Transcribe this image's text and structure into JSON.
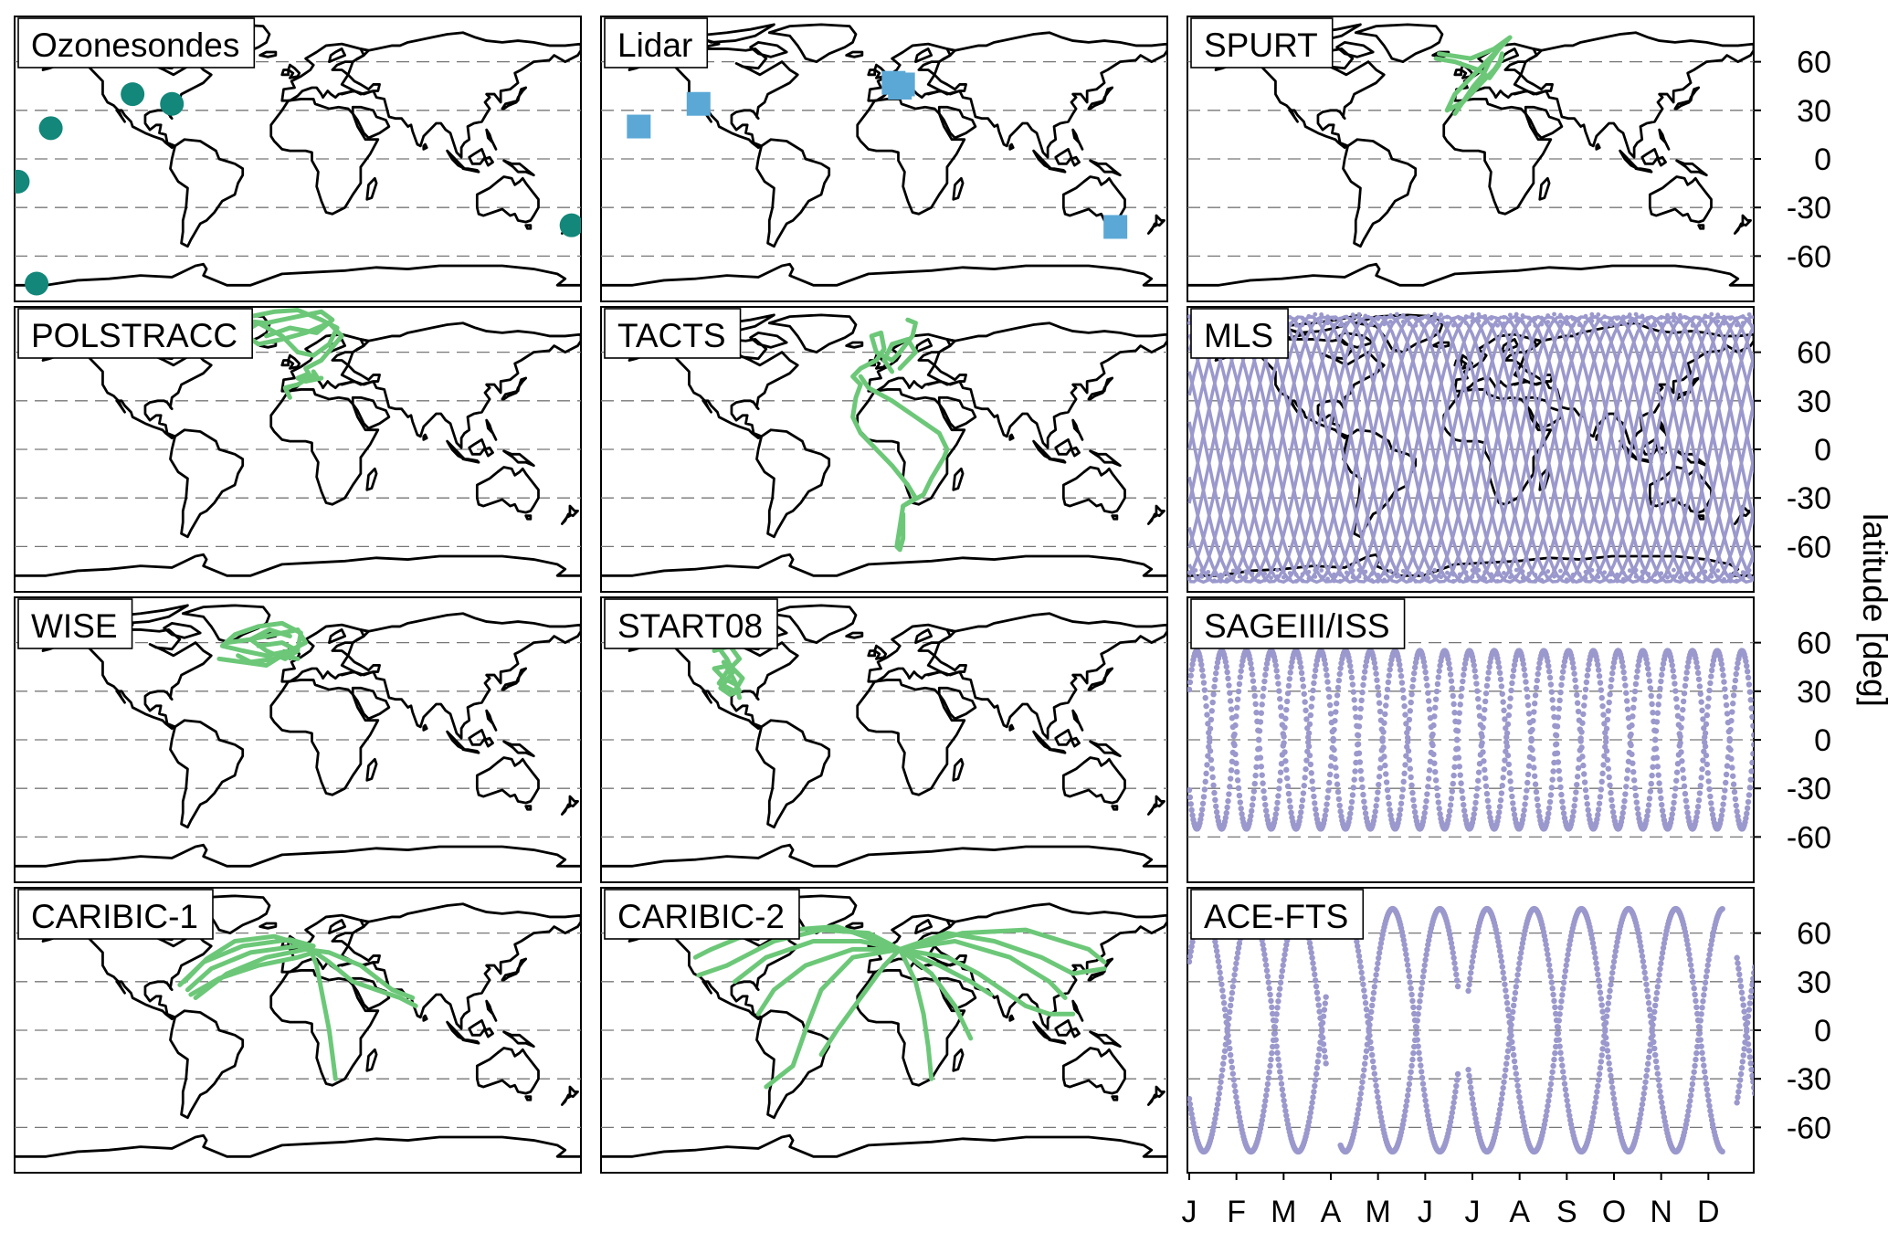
{
  "colors": {
    "ozonesondes": "#12877a",
    "lidar": "#5ba8d6",
    "aircraft": "#6cc878",
    "satellite": "#9a98cc",
    "grid": "#777777"
  },
  "y_axis": {
    "label": "latitude [deg]",
    "ticks": [
      60,
      30,
      0,
      -30,
      -60
    ]
  },
  "month_axis": {
    "labels": [
      "J",
      "F",
      "M",
      "A",
      "M",
      "J",
      "J",
      "A",
      "S",
      "O",
      "N",
      "D"
    ]
  },
  "panels": [
    {
      "id": "ozonesondes",
      "title": "Ozonesondes",
      "kind": "stations",
      "marker": "circle",
      "color_key": "ozonesondes",
      "points": [
        [
          -178,
          -14
        ],
        [
          -157,
          19
        ],
        [
          -147,
          64
        ],
        [
          -105,
          40
        ],
        [
          -80,
          34
        ],
        [
          174,
          -41
        ],
        [
          -166,
          -77
        ]
      ]
    },
    {
      "id": "lidar",
      "title": "Lidar",
      "kind": "stations",
      "marker": "square",
      "color_key": "lidar",
      "points": [
        [
          -156,
          20
        ],
        [
          -118,
          34
        ],
        [
          10,
          44
        ],
        [
          6,
          47
        ],
        [
          12,
          46
        ],
        [
          147,
          -42
        ]
      ]
    },
    {
      "id": "spurt",
      "title": "SPURT",
      "kind": "tracks",
      "color_key": "aircraft",
      "tracks": [
        [
          [
            -20,
            65
          ],
          [
            0,
            62
          ],
          [
            15,
            68
          ],
          [
            25,
            75
          ],
          [
            20,
            70
          ],
          [
            10,
            60
          ],
          [
            0,
            50
          ],
          [
            -10,
            40
          ],
          [
            -15,
            30
          ],
          [
            -5,
            35
          ],
          [
            5,
            45
          ],
          [
            15,
            55
          ],
          [
            20,
            62
          ]
        ],
        [
          [
            -10,
            28
          ],
          [
            -5,
            35
          ],
          [
            2,
            45
          ],
          [
            8,
            52
          ],
          [
            12,
            60
          ],
          [
            18,
            68
          ],
          [
            22,
            72
          ]
        ],
        [
          [
            -22,
            62
          ],
          [
            -10,
            60
          ],
          [
            5,
            55
          ],
          [
            12,
            50
          ],
          [
            18,
            58
          ],
          [
            20,
            65
          ]
        ]
      ]
    },
    {
      "id": "polstracc",
      "title": "POLSTRACC",
      "kind": "tracks",
      "color_key": "aircraft",
      "tracks": [
        [
          [
            -30,
            82
          ],
          [
            -15,
            85
          ],
          [
            0,
            86
          ],
          [
            15,
            80
          ],
          [
            25,
            75
          ],
          [
            20,
            65
          ],
          [
            10,
            58
          ],
          [
            0,
            60
          ],
          [
            -10,
            70
          ],
          [
            -25,
            78
          ],
          [
            -35,
            72
          ],
          [
            -25,
            65
          ],
          [
            -10,
            68
          ],
          [
            5,
            72
          ],
          [
            20,
            78
          ],
          [
            28,
            70
          ],
          [
            15,
            55
          ],
          [
            5,
            50
          ],
          [
            8,
            45
          ],
          [
            0,
            40
          ],
          [
            -8,
            38
          ],
          [
            -5,
            32
          ]
        ],
        [
          [
            -40,
            80
          ],
          [
            -20,
            78
          ],
          [
            0,
            82
          ],
          [
            15,
            85
          ],
          [
            22,
            80
          ],
          [
            12,
            72
          ],
          [
            -5,
            75
          ],
          [
            -20,
            70
          ]
        ],
        [
          [
            10,
            48
          ],
          [
            12,
            45
          ],
          [
            5,
            46
          ],
          [
            0,
            44
          ],
          [
            5,
            42
          ],
          [
            15,
            44
          ]
        ]
      ]
    },
    {
      "id": "tacts",
      "title": "TACTS",
      "kind": "tracks",
      "color_key": "aircraft",
      "tracks": [
        [
          [
            15,
            80
          ],
          [
            20,
            78
          ],
          [
            18,
            70
          ],
          [
            10,
            60
          ],
          [
            5,
            55
          ],
          [
            -5,
            60
          ],
          [
            -8,
            70
          ],
          [
            -2,
            72
          ],
          [
            0,
            62
          ],
          [
            -5,
            55
          ],
          [
            -15,
            50
          ],
          [
            -20,
            45
          ],
          [
            -15,
            40
          ],
          [
            -18,
            32
          ],
          [
            -20,
            20
          ],
          [
            -15,
            10
          ],
          [
            -5,
            0
          ],
          [
            5,
            -10
          ],
          [
            15,
            -22
          ],
          [
            20,
            -30
          ],
          [
            12,
            -35
          ],
          [
            8,
            -60
          ],
          [
            10,
            -62
          ],
          [
            12,
            -55
          ],
          [
            12,
            -40
          ]
        ],
        [
          [
            12,
            -35
          ],
          [
            25,
            -28
          ],
          [
            30,
            -18
          ],
          [
            38,
            -5
          ],
          [
            40,
            0
          ],
          [
            35,
            10
          ],
          [
            20,
            20
          ],
          [
            5,
            30
          ],
          [
            -10,
            38
          ],
          [
            -15,
            45
          ]
        ],
        [
          [
            10,
            50
          ],
          [
            15,
            55
          ],
          [
            20,
            60
          ],
          [
            15,
            68
          ],
          [
            5,
            65
          ],
          [
            0,
            55
          ],
          [
            5,
            48
          ]
        ]
      ]
    },
    {
      "id": "mls",
      "title": "MLS",
      "kind": "satellite_mls",
      "color_key": "satellite",
      "curve_count": 15
    },
    {
      "id": "wise",
      "title": "WISE",
      "kind": "tracks",
      "color_key": "aircraft",
      "tracks": [
        [
          [
            -45,
            60
          ],
          [
            -30,
            62
          ],
          [
            -15,
            65
          ],
          [
            0,
            68
          ],
          [
            5,
            60
          ],
          [
            -5,
            55
          ],
          [
            -20,
            52
          ],
          [
            -35,
            55
          ],
          [
            -48,
            58
          ],
          [
            -40,
            65
          ],
          [
            -25,
            70
          ],
          [
            -10,
            72
          ],
          [
            2,
            66
          ],
          [
            0,
            56
          ],
          [
            -15,
            50
          ],
          [
            -30,
            48
          ],
          [
            -38,
            52
          ]
        ],
        [
          [
            -25,
            58
          ],
          [
            -10,
            60
          ],
          [
            0,
            55
          ],
          [
            -8,
            50
          ],
          [
            -20,
            55
          ],
          [
            -30,
            62
          ],
          [
            -18,
            68
          ],
          [
            -5,
            64
          ]
        ],
        [
          [
            -50,
            50
          ],
          [
            -35,
            48
          ],
          [
            -20,
            46
          ],
          [
            -10,
            52
          ],
          [
            0,
            50
          ]
        ]
      ]
    },
    {
      "id": "start08",
      "title": "START08",
      "kind": "tracks",
      "color_key": "aircraft",
      "tracks": [
        [
          [
            -108,
            55
          ],
          [
            -98,
            58
          ],
          [
            -92,
            50
          ],
          [
            -100,
            42
          ],
          [
            -105,
            35
          ],
          [
            -95,
            30
          ],
          [
            -90,
            38
          ],
          [
            -98,
            46
          ],
          [
            -108,
            44
          ],
          [
            -102,
            38
          ],
          [
            -94,
            34
          ],
          [
            -92,
            26
          ]
        ],
        [
          [
            -106,
            58
          ],
          [
            -100,
            50
          ],
          [
            -96,
            42
          ],
          [
            -104,
            32
          ],
          [
            -98,
            28
          ],
          [
            -92,
            30
          ],
          [
            -96,
            38
          ],
          [
            -102,
            48
          ]
        ]
      ]
    },
    {
      "id": "sageiii",
      "title": "SAGEIII/ISS",
      "kind": "satellite_sage",
      "color_key": "satellite"
    },
    {
      "id": "caribic1",
      "title": "CARIBIC-1",
      "kind": "tracks",
      "color_key": "aircraft",
      "tracks": [
        [
          [
            -70,
            25
          ],
          [
            -55,
            38
          ],
          [
            -30,
            48
          ],
          [
            0,
            52
          ],
          [
            8,
            50
          ]
        ],
        [
          [
            -65,
            20
          ],
          [
            -45,
            35
          ],
          [
            -20,
            45
          ],
          [
            5,
            50
          ],
          [
            20,
            48
          ],
          [
            40,
            40
          ],
          [
            60,
            25
          ],
          [
            73,
            20
          ]
        ],
        [
          [
            -75,
            28
          ],
          [
            -60,
            42
          ],
          [
            -35,
            52
          ],
          [
            -5,
            56
          ],
          [
            10,
            52
          ]
        ],
        [
          [
            -68,
            22
          ],
          [
            -50,
            32
          ],
          [
            -25,
            40
          ],
          [
            0,
            45
          ],
          [
            10,
            48
          ]
        ],
        [
          [
            8,
            50
          ],
          [
            12,
            40
          ],
          [
            15,
            25
          ],
          [
            18,
            10
          ],
          [
            20,
            0
          ],
          [
            22,
            -15
          ],
          [
            24,
            -30
          ]
        ],
        [
          [
            8,
            50
          ],
          [
            20,
            42
          ],
          [
            35,
            30
          ],
          [
            50,
            25
          ],
          [
            65,
            20
          ],
          [
            75,
            15
          ]
        ],
        [
          [
            -72,
            30
          ],
          [
            -58,
            44
          ],
          [
            -40,
            55
          ],
          [
            -15,
            58
          ],
          [
            5,
            52
          ]
        ]
      ]
    },
    {
      "id": "caribic2",
      "title": "CARIBIC-2",
      "kind": "tracks",
      "color_key": "aircraft",
      "tracks": [
        [
          [
            10,
            50
          ],
          [
            -10,
            60
          ],
          [
            -40,
            62
          ],
          [
            -70,
            55
          ],
          [
            -90,
            45
          ],
          [
            -100,
            40
          ],
          [
            -118,
            34
          ]
        ],
        [
          [
            10,
            50
          ],
          [
            -15,
            55
          ],
          [
            -45,
            55
          ],
          [
            -75,
            45
          ],
          [
            -95,
            30
          ]
        ],
        [
          [
            10,
            50
          ],
          [
            -20,
            50
          ],
          [
            -50,
            40
          ],
          [
            -70,
            25
          ],
          [
            -80,
            10
          ]
        ],
        [
          [
            10,
            50
          ],
          [
            -20,
            45
          ],
          [
            -40,
            25
          ],
          [
            -50,
            0
          ],
          [
            -58,
            -22
          ],
          [
            -75,
            -35
          ]
        ],
        [
          [
            10,
            50
          ],
          [
            0,
            40
          ],
          [
            -15,
            20
          ],
          [
            -30,
            0
          ],
          [
            -40,
            -15
          ]
        ],
        [
          [
            10,
            50
          ],
          [
            20,
            30
          ],
          [
            25,
            10
          ],
          [
            28,
            -10
          ],
          [
            30,
            -30
          ]
        ],
        [
          [
            10,
            50
          ],
          [
            40,
            60
          ],
          [
            70,
            55
          ],
          [
            100,
            45
          ],
          [
            120,
            35
          ],
          [
            140,
            38
          ]
        ],
        [
          [
            10,
            50
          ],
          [
            45,
            55
          ],
          [
            80,
            45
          ],
          [
            105,
            30
          ],
          [
            115,
            20
          ]
        ],
        [
          [
            10,
            50
          ],
          [
            40,
            45
          ],
          [
            60,
            35
          ],
          [
            75,
            25
          ],
          [
            90,
            15
          ],
          [
            105,
            10
          ],
          [
            120,
            10
          ]
        ],
        [
          [
            10,
            50
          ],
          [
            35,
            40
          ],
          [
            55,
            30
          ],
          [
            68,
            22
          ]
        ],
        [
          [
            10,
            50
          ],
          [
            50,
            60
          ],
          [
            90,
            62
          ],
          [
            130,
            50
          ],
          [
            140,
            42
          ]
        ],
        [
          [
            10,
            50
          ],
          [
            -30,
            64
          ],
          [
            -60,
            62
          ],
          [
            -90,
            58
          ],
          [
            -110,
            50
          ],
          [
            -120,
            45
          ]
        ],
        [
          [
            10,
            50
          ],
          [
            30,
            35
          ],
          [
            45,
            15
          ],
          [
            55,
            -5
          ]
        ]
      ]
    },
    {
      "id": "acefts",
      "title": "ACE-FTS",
      "kind": "satellite_ace",
      "color_key": "satellite"
    }
  ]
}
